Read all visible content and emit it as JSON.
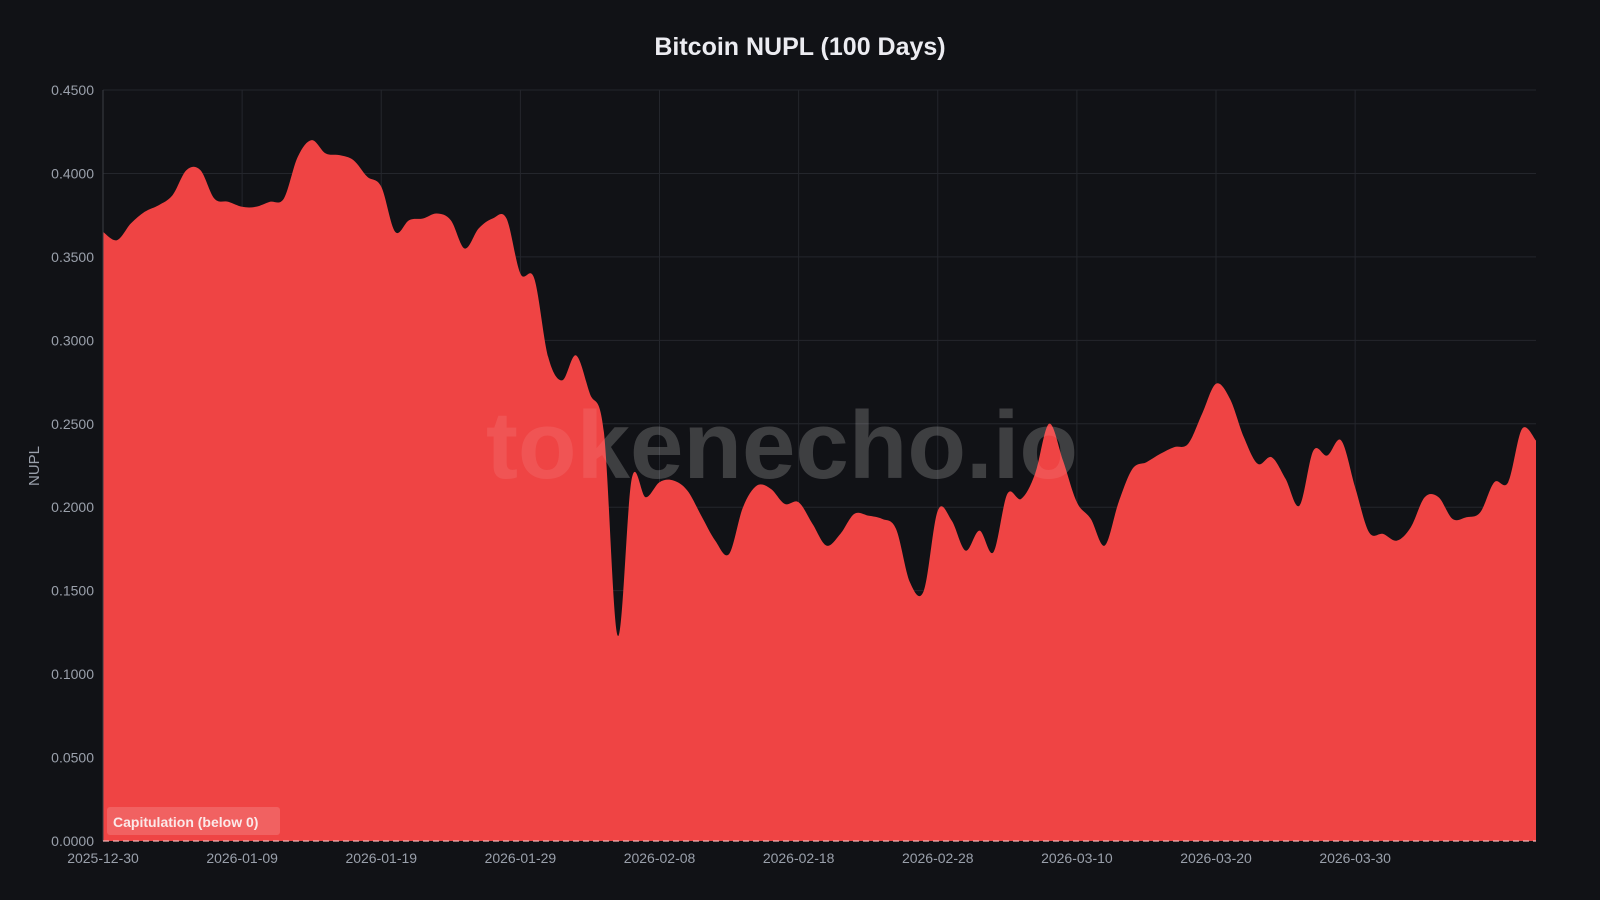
{
  "header": {
    "title": "Bitcoin NUPL (100 Days)"
  },
  "watermark": "tokenecho.io",
  "annotation": {
    "label": "Capitulation (below 0)"
  },
  "colors": {
    "background": "#111216",
    "area_fill": "#ef4444",
    "grid": "#24262c",
    "tick_text": "#9aa0ab",
    "title_text": "#ececf1"
  },
  "chart_data": {
    "type": "area",
    "title": "Bitcoin NUPL (100 Days)",
    "xlabel": "",
    "ylabel": "NUPL",
    "ylim": [
      0,
      0.45
    ],
    "grid": true,
    "legend": "none",
    "yticks": [
      "0.0000",
      "0.0500",
      "0.1000",
      "0.1500",
      "0.2000",
      "0.2500",
      "0.3000",
      "0.3500",
      "0.4000",
      "0.4500"
    ],
    "xticks": [
      "2025-12-30",
      "2026-01-09",
      "2026-01-19",
      "2026-01-29",
      "2026-02-08",
      "2026-02-18",
      "2026-02-28",
      "2026-03-10",
      "2026-03-20",
      "2026-03-30"
    ],
    "annotations": [
      "Capitulation (below 0)",
      "dashed reference line at 0"
    ],
    "x_start": "2025-12-30",
    "x_end": "2026-04-08",
    "values": [
      0.365,
      0.36,
      0.37,
      0.377,
      0.381,
      0.387,
      0.402,
      0.402,
      0.385,
      0.383,
      0.38,
      0.38,
      0.383,
      0.385,
      0.41,
      0.42,
      0.412,
      0.411,
      0.408,
      0.398,
      0.392,
      0.365,
      0.372,
      0.373,
      0.376,
      0.372,
      0.355,
      0.367,
      0.373,
      0.373,
      0.34,
      0.337,
      0.29,
      0.276,
      0.291,
      0.268,
      0.245,
      0.123,
      0.217,
      0.206,
      0.215,
      0.216,
      0.21,
      0.195,
      0.18,
      0.172,
      0.2,
      0.213,
      0.211,
      0.202,
      0.203,
      0.19,
      0.177,
      0.184,
      0.196,
      0.195,
      0.193,
      0.187,
      0.155,
      0.15,
      0.198,
      0.192,
      0.174,
      0.186,
      0.173,
      0.208,
      0.205,
      0.22,
      0.25,
      0.228,
      0.203,
      0.193,
      0.177,
      0.203,
      0.223,
      0.227,
      0.232,
      0.236,
      0.238,
      0.256,
      0.274,
      0.265,
      0.242,
      0.226,
      0.23,
      0.217,
      0.201,
      0.234,
      0.231,
      0.24,
      0.212,
      0.185,
      0.184,
      0.18,
      0.188,
      0.206,
      0.206,
      0.193,
      0.194,
      0.197,
      0.215,
      0.215,
      0.247,
      0.24
    ]
  }
}
